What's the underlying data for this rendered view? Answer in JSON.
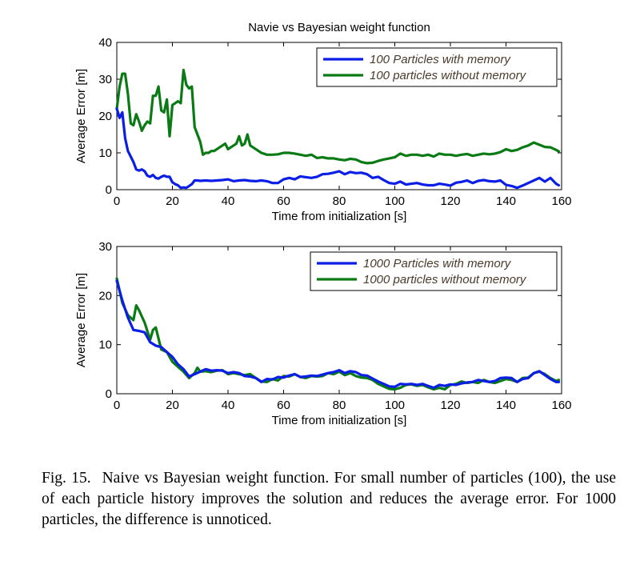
{
  "colors": {
    "series_1": "#0a1ee6",
    "series_2": "#0a7a14",
    "axis": "#000000"
  },
  "chart_data": [
    {
      "type": "line",
      "title": "Navie vs Bayesian weight function",
      "xlabel": "Time from initialization [s]",
      "ylabel": "Average Error [m]",
      "xlim": [
        0,
        160
      ],
      "ylim": [
        0,
        40
      ],
      "xticks": [
        0,
        20,
        40,
        60,
        80,
        100,
        120,
        140,
        160
      ],
      "yticks": [
        0,
        10,
        20,
        30,
        40
      ],
      "grid": false,
      "legend_position": "top-right",
      "series": [
        {
          "name": "100 Particles with memory",
          "color": "#0a1ee6",
          "x": [
            0,
            1,
            2,
            3,
            4,
            5,
            6,
            7,
            8,
            9,
            10,
            11,
            12,
            13,
            14,
            15,
            16,
            17,
            18,
            19,
            20,
            21,
            22,
            23,
            24,
            25,
            26,
            27,
            28,
            29,
            30,
            32,
            34,
            36,
            38,
            40,
            42,
            44,
            46,
            48,
            50,
            52,
            54,
            56,
            58,
            60,
            62,
            64,
            66,
            68,
            70,
            72,
            74,
            76,
            78,
            80,
            82,
            84,
            86,
            88,
            90,
            92,
            94,
            96,
            98,
            100,
            102,
            104,
            106,
            108,
            110,
            112,
            114,
            116,
            118,
            120,
            122,
            124,
            126,
            128,
            130,
            132,
            134,
            136,
            138,
            140,
            142,
            144,
            146,
            148,
            150,
            152,
            154,
            156,
            158,
            159
          ],
          "y": [
            22,
            19.5,
            21,
            14,
            10.5,
            9,
            7.5,
            5.5,
            5.2,
            5.5,
            5,
            3.8,
            3.5,
            4,
            3.2,
            3,
            3.5,
            3.8,
            3.5,
            3.5,
            2,
            1.5,
            1.2,
            0.5,
            0.6,
            0.5,
            1,
            1.5,
            2.5,
            2.5,
            2.4,
            2.5,
            2.4,
            2.5,
            2.6,
            2.8,
            2.3,
            2.5,
            2.6,
            2.4,
            2.3,
            2.5,
            2.3,
            1.8,
            1.8,
            2.8,
            3.2,
            2.8,
            3.6,
            3.4,
            3.2,
            3.5,
            4.2,
            4.3,
            4.6,
            5,
            4.2,
            4.8,
            4.5,
            4.6,
            4.2,
            3.2,
            3.5,
            2.6,
            1.8,
            1.6,
            2.2,
            1.4,
            1.6,
            1.8,
            1.4,
            1.2,
            1.2,
            1.6,
            1.4,
            1.1,
            1.9,
            2.1,
            2.5,
            1.8,
            2.4,
            2.6,
            2.3,
            2.2,
            2.5,
            1.3,
            1,
            0.5,
            1.1,
            1.8,
            2.5,
            3.2,
            2.2,
            3.2,
            1.6,
            1.2
          ]
        },
        {
          "name": "100 particles without memory",
          "color": "#0a7a14",
          "x": [
            0,
            1,
            2,
            3,
            4,
            5,
            6,
            7,
            8,
            9,
            10,
            11,
            12,
            13,
            14,
            15,
            16,
            17,
            18,
            19,
            20,
            21,
            22,
            23,
            24,
            25,
            26,
            27,
            28,
            29,
            30,
            31,
            32,
            33,
            34,
            35,
            36,
            37,
            38,
            39,
            40,
            41,
            42,
            43,
            44,
            45,
            46,
            47,
            48,
            50,
            52,
            54,
            56,
            58,
            60,
            62,
            64,
            66,
            68,
            70,
            72,
            74,
            76,
            78,
            80,
            82,
            84,
            86,
            88,
            90,
            92,
            94,
            96,
            98,
            100,
            102,
            104,
            106,
            108,
            110,
            112,
            114,
            116,
            118,
            120,
            122,
            124,
            126,
            128,
            130,
            132,
            134,
            136,
            138,
            140,
            142,
            144,
            146,
            148,
            150,
            152,
            154,
            156,
            158,
            159
          ],
          "y": [
            22,
            28,
            31.5,
            31.5,
            26,
            18,
            17.5,
            20.5,
            18.5,
            16,
            17.5,
            18.5,
            18,
            25.5,
            25.5,
            28,
            21.5,
            21,
            24.5,
            14.5,
            23,
            23.5,
            24,
            23.5,
            32.5,
            28.5,
            27.5,
            28,
            17,
            15,
            13,
            9.5,
            10,
            10,
            10.5,
            10.5,
            11,
            11.5,
            12,
            12.5,
            11,
            11.5,
            12,
            12.5,
            14.5,
            12,
            12.5,
            15,
            12,
            11,
            10,
            9.5,
            9.5,
            9.6,
            10,
            10,
            9.8,
            9.5,
            9.2,
            9.5,
            8.6,
            8.8,
            8.5,
            8.5,
            8.2,
            8,
            8.4,
            8.2,
            7.5,
            7.2,
            7.3,
            7.8,
            8.2,
            8.5,
            8.8,
            9.8,
            9.2,
            9.5,
            9.5,
            9.2,
            9.5,
            9,
            9.8,
            9.5,
            9.5,
            9.2,
            9.5,
            9.7,
            9.2,
            9.5,
            9.8,
            9.6,
            9.8,
            10.2,
            11,
            10.5,
            10.8,
            11.5,
            12,
            12.8,
            12.2,
            11.6,
            11.5,
            10.8,
            10.4
          ]
        }
      ]
    },
    {
      "type": "line",
      "title": "",
      "xlabel": "Time from initialization [s]",
      "ylabel": "Average Error [m]",
      "xlim": [
        0,
        160
      ],
      "ylim": [
        0,
        30
      ],
      "xticks": [
        0,
        20,
        40,
        60,
        80,
        100,
        120,
        140,
        160
      ],
      "yticks": [
        0,
        10,
        20,
        30
      ],
      "grid": false,
      "legend_position": "top-right",
      "series": [
        {
          "name": "1000 Particles with memory",
          "color": "#0a1ee6",
          "x": [
            0,
            2,
            4,
            6,
            8,
            10,
            12,
            14,
            16,
            18,
            20,
            22,
            24,
            26,
            28,
            30,
            32,
            34,
            36,
            38,
            40,
            42,
            44,
            46,
            48,
            50,
            52,
            54,
            56,
            58,
            60,
            62,
            64,
            66,
            68,
            70,
            72,
            74,
            76,
            78,
            80,
            82,
            84,
            86,
            88,
            90,
            92,
            94,
            96,
            98,
            100,
            102,
            104,
            106,
            108,
            110,
            112,
            114,
            116,
            118,
            120,
            122,
            124,
            126,
            128,
            130,
            132,
            134,
            136,
            138,
            140,
            142,
            144,
            146,
            148,
            150,
            152,
            154,
            156,
            158,
            159
          ],
          "y": [
            23,
            19,
            15.5,
            13,
            12.8,
            12.5,
            10.5,
            9.8,
            9.5,
            8.5,
            7.5,
            6,
            5,
            3.5,
            4,
            4.5,
            5,
            4.7,
            4.8,
            4.7,
            4.2,
            4.4,
            4.2,
            3.6,
            3.5,
            3.2,
            2.4,
            3,
            2.9,
            3.4,
            3.3,
            3.7,
            4,
            3.4,
            3.5,
            3.7,
            3.6,
            3.9,
            4.2,
            4.4,
            4.8,
            4.2,
            4.6,
            4.4,
            3.8,
            3.7,
            3.1,
            2.5,
            2,
            1.5,
            1.4,
            2,
            1.9,
            2,
            1.8,
            2,
            1.6,
            1.2,
            1.8,
            1.6,
            1.9,
            1.8,
            2.1,
            2.3,
            2.4,
            2.8,
            2.6,
            2.4,
            2.6,
            3.2,
            3.3,
            3.2,
            2.4,
            3,
            3.2,
            4.2,
            4.6,
            3.8,
            3,
            2.4,
            2.4
          ]
        },
        {
          "name": "1000 particles without memory",
          "color": "#0a7a14",
          "x": [
            0,
            2,
            4,
            6,
            7,
            8,
            10,
            12,
            13,
            14,
            16,
            18,
            20,
            22,
            24,
            26,
            28,
            29,
            30,
            32,
            34,
            36,
            38,
            40,
            42,
            44,
            46,
            48,
            50,
            52,
            54,
            56,
            58,
            60,
            62,
            64,
            66,
            68,
            70,
            72,
            74,
            76,
            78,
            80,
            82,
            84,
            86,
            88,
            90,
            92,
            94,
            96,
            98,
            100,
            102,
            104,
            106,
            108,
            110,
            112,
            114,
            116,
            118,
            120,
            122,
            124,
            126,
            128,
            130,
            132,
            134,
            136,
            138,
            140,
            142,
            144,
            146,
            148,
            150,
            152,
            154,
            156,
            158,
            159
          ],
          "y": [
            23.5,
            18.5,
            16,
            15,
            18,
            17,
            14.5,
            11,
            13,
            13.5,
            9,
            8.5,
            6.5,
            5.5,
            4.5,
            3.2,
            4.2,
            5.3,
            4.5,
            4.6,
            4.4,
            4.7,
            4.8,
            4,
            4.2,
            4,
            3.8,
            4,
            3.2,
            2.5,
            2.4,
            3,
            2.7,
            3.6,
            3.5,
            4,
            3.4,
            3.2,
            3.6,
            3.5,
            3.6,
            4.2,
            4,
            4.5,
            3.8,
            4.2,
            3.6,
            3.3,
            3.2,
            2.8,
            2,
            1.5,
            1,
            0.9,
            1.2,
            1.8,
            1.9,
            1.6,
            1.8,
            1.3,
            0.9,
            1.2,
            0.9,
            1.8,
            2,
            2.5,
            2.2,
            2.4,
            2.2,
            2.8,
            2.4,
            2.2,
            2.6,
            3,
            2.8,
            2.4,
            3.2,
            3.3,
            4.2,
            4.5,
            4,
            3.2,
            2.6,
            2.8
          ]
        }
      ]
    }
  ],
  "caption": {
    "label": "Fig. 15.",
    "text": "Naive vs Bayesian weight function. For small number of particles (100), the use of each particle history improves the solution and reduces the average error. For 1000 particles, the difference is unnoticed."
  }
}
